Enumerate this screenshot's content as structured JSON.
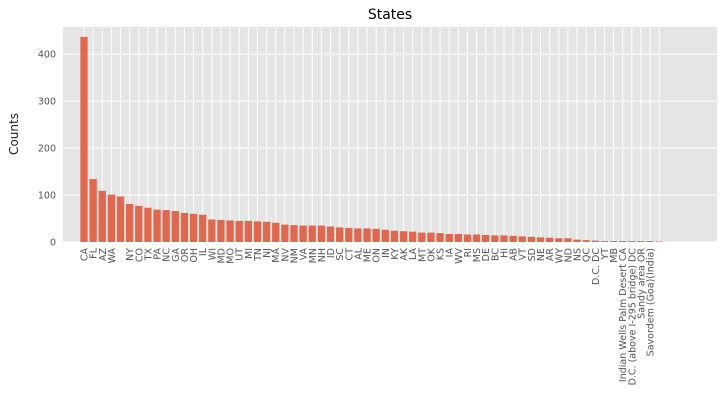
{
  "chart_data": {
    "type": "bar",
    "title": "States",
    "xlabel": "",
    "ylabel": "Counts",
    "ylim": [
      0,
      458
    ],
    "yticks": [
      0,
      100,
      200,
      300,
      400
    ],
    "grid": true,
    "legend": "none",
    "colors": {
      "bar": "#e0684e",
      "plot_background": "#e5e5e5",
      "grid": "#ffffff"
    },
    "categories": [
      "CA",
      "FL",
      "AZ",
      "WA",
      "",
      "NY",
      "CO",
      "TX",
      "PA",
      "NC",
      "GA",
      "OR",
      "OH",
      "IL",
      "WI",
      "MD",
      "MO",
      "UT",
      "MI",
      "TN",
      "NJ",
      "MA",
      "NV",
      "NM",
      "VA",
      "MN",
      "NH",
      "ID",
      "SC",
      "CT",
      "AL",
      "ME",
      "ON",
      "IN",
      "KY",
      "AK",
      "LA",
      "MT",
      "OK",
      "KS",
      "IA",
      "WV",
      "RI",
      "MS",
      "DE",
      "BC",
      "HI",
      "AB",
      "VT",
      "SD",
      "NE",
      "AR",
      "WY",
      "ND",
      "NS",
      "QC",
      "D.C. DC",
      "YT",
      "MB",
      "Indian Wells Palm Desert CA",
      "D.C. (above I-295 bridge) DC",
      "Sandy area OR",
      "Savordem (Goa)(India)",
      ""
    ],
    "values": [
      437,
      134,
      109,
      101,
      97,
      81,
      77,
      73,
      69,
      68,
      66,
      62,
      60,
      58,
      48,
      47,
      46,
      45,
      45,
      44,
      43,
      41,
      37,
      36,
      35,
      35,
      35,
      33,
      31,
      30,
      29,
      29,
      28,
      26,
      24,
      23,
      22,
      20,
      20,
      19,
      17,
      17,
      16,
      16,
      15,
      14,
      14,
      13,
      12,
      11,
      10,
      9,
      8,
      8,
      5,
      4,
      3,
      2,
      2,
      2,
      2,
      2,
      2,
      1
    ]
  }
}
